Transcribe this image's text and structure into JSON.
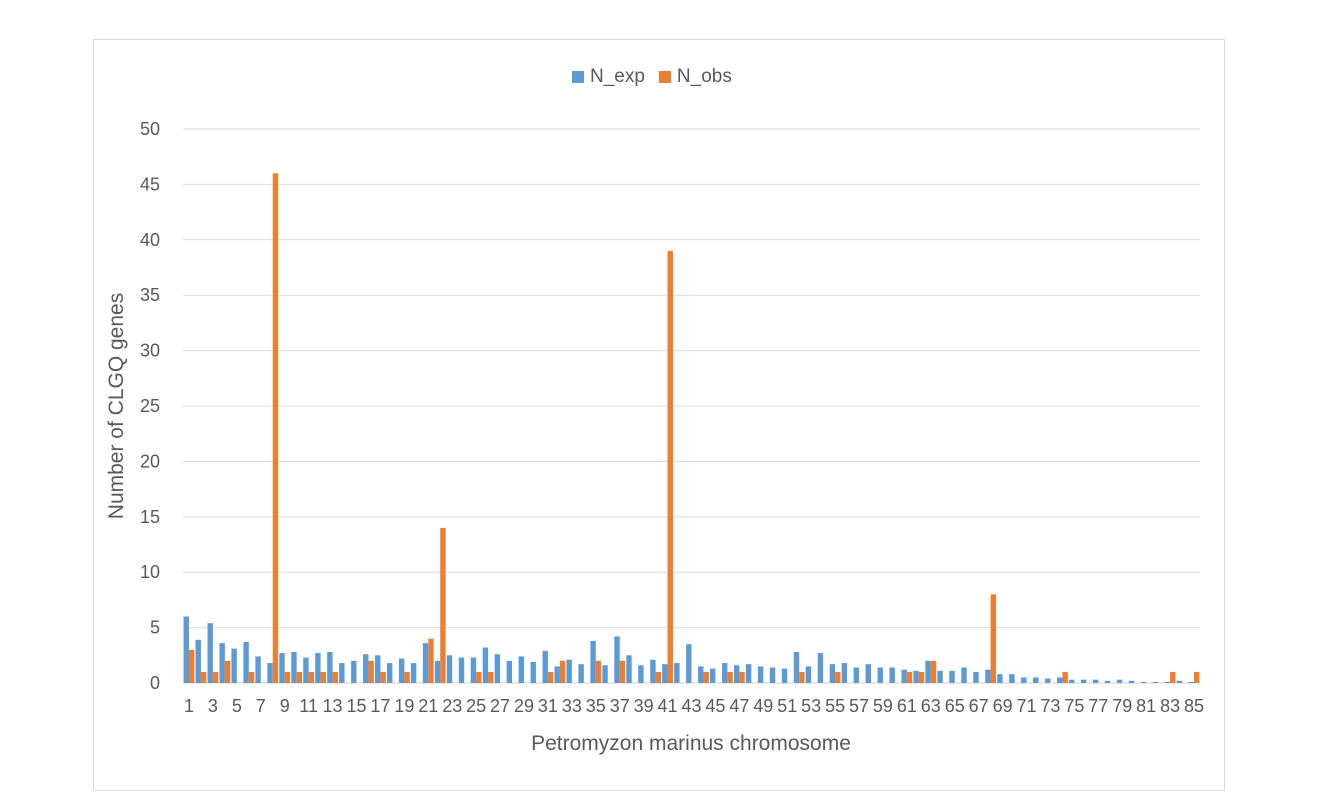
{
  "chart_data": {
    "type": "bar",
    "xlabel": "Petromyzon marinus chromosome",
    "ylabel": "Number of CLGQ genes",
    "ylim": [
      0,
      50
    ],
    "yticks": [
      0,
      5,
      10,
      15,
      20,
      25,
      30,
      35,
      40,
      45,
      50
    ],
    "grid": true,
    "legend_position": "top",
    "categories": [
      "1",
      "2",
      "3",
      "4",
      "5",
      "6",
      "7",
      "8",
      "9",
      "10",
      "11",
      "12",
      "13",
      "14",
      "15",
      "16",
      "17",
      "18",
      "19",
      "20",
      "21",
      "22",
      "23",
      "24",
      "25",
      "26",
      "27",
      "28",
      "29",
      "30",
      "31",
      "32",
      "33",
      "34",
      "35",
      "36",
      "37",
      "38",
      "39",
      "40",
      "41",
      "42",
      "43",
      "44",
      "45",
      "46",
      "47",
      "48",
      "49",
      "50",
      "51",
      "52",
      "53",
      "54",
      "55",
      "56",
      "57",
      "58",
      "59",
      "60",
      "61",
      "62",
      "63",
      "64",
      "65",
      "66",
      "67",
      "68",
      "69",
      "70",
      "71",
      "72",
      "73",
      "74",
      "75",
      "76",
      "77",
      "78",
      "79",
      "80",
      "81",
      "82",
      "83",
      "84",
      "85"
    ],
    "series": [
      {
        "name": "N_exp",
        "color": "#5b9bd5",
        "values": [
          6.0,
          3.9,
          5.4,
          3.6,
          3.1,
          3.7,
          2.4,
          1.8,
          2.7,
          2.8,
          2.3,
          2.7,
          2.8,
          1.8,
          2.0,
          2.6,
          2.5,
          1.8,
          2.2,
          1.8,
          3.6,
          2.0,
          2.5,
          2.3,
          2.3,
          3.2,
          2.6,
          2.0,
          2.4,
          1.9,
          2.9,
          1.5,
          2.1,
          1.7,
          3.8,
          1.6,
          4.2,
          2.5,
          1.6,
          2.1,
          1.7,
          1.8,
          3.5,
          1.5,
          1.3,
          1.8,
          1.6,
          1.7,
          1.5,
          1.4,
          1.3,
          2.8,
          1.5,
          2.7,
          1.7,
          1.8,
          1.4,
          1.7,
          1.4,
          1.4,
          1.2,
          1.1,
          2.0,
          1.1,
          1.1,
          1.4,
          1.0,
          1.2,
          0.8,
          0.8,
          0.5,
          0.5,
          0.4,
          0.5,
          0.3,
          0.3,
          0.3,
          0.2,
          0.3,
          0.2,
          0.1,
          0.1,
          0.1,
          0.2,
          0.1
        ]
      },
      {
        "name": "N_obs",
        "color": "#ed7d31",
        "values": [
          3,
          1,
          1,
          2,
          0,
          1,
          0,
          46,
          1,
          1,
          1,
          1,
          1,
          0,
          0,
          2,
          1,
          0,
          1,
          0,
          4,
          14,
          0,
          0,
          1,
          1,
          0,
          0,
          0,
          0,
          1,
          2,
          0,
          0,
          2,
          0,
          2,
          0,
          0,
          1,
          39,
          0,
          0,
          1,
          0,
          1,
          1,
          0,
          0,
          0,
          0,
          1,
          0,
          0,
          1,
          0,
          0,
          0,
          0,
          0,
          1,
          1,
          2,
          0,
          0,
          0,
          0,
          8,
          0,
          0,
          0,
          0,
          0,
          1,
          0,
          0,
          0,
          0,
          0,
          0,
          0,
          0,
          1,
          0,
          1
        ]
      }
    ],
    "xtick_labels": [
      "1",
      "3",
      "5",
      "7",
      "9",
      "11",
      "13",
      "15",
      "17",
      "19",
      "21",
      "23",
      "25",
      "27",
      "29",
      "31",
      "33",
      "35",
      "37",
      "39",
      "41",
      "43",
      "45",
      "47",
      "49",
      "51",
      "53",
      "55",
      "57",
      "59",
      "61",
      "63",
      "65",
      "67",
      "69",
      "71",
      "73",
      "75",
      "77",
      "79",
      "81",
      "83",
      "85"
    ]
  }
}
